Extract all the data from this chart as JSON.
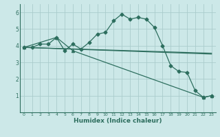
{
  "title": "",
  "xlabel": "Humidex (Indice chaleur)",
  "bg_color": "#cce8e8",
  "line_color": "#2d6e5e",
  "grid_color": "#aacccc",
  "series1_x": [
    0,
    1,
    2,
    3,
    4,
    5,
    6,
    7,
    8,
    9,
    10,
    11,
    12,
    13,
    14,
    15,
    16,
    17,
    18,
    19,
    20,
    21,
    22,
    23
  ],
  "series1_y": [
    3.9,
    3.9,
    4.1,
    4.1,
    4.5,
    3.7,
    4.1,
    3.8,
    4.2,
    4.7,
    4.8,
    5.5,
    5.9,
    5.6,
    5.7,
    5.6,
    5.1,
    4.0,
    2.8,
    2.45,
    2.4,
    1.3,
    0.9,
    1.0
  ],
  "series2_x": [
    0,
    23
  ],
  "series2_y": [
    3.9,
    3.5
  ],
  "series3_x": [
    0,
    4,
    6,
    22,
    23
  ],
  "series3_y": [
    3.9,
    4.5,
    3.7,
    0.9,
    1.0
  ],
  "series4_x": [
    0,
    23
  ],
  "series4_y": [
    3.9,
    3.55
  ],
  "ylim": [
    0,
    6.5
  ],
  "xlim": [
    -0.5,
    23.5
  ],
  "yticks": [
    1,
    2,
    3,
    4,
    5,
    6
  ],
  "xticks": [
    0,
    1,
    2,
    3,
    4,
    5,
    6,
    7,
    8,
    9,
    10,
    11,
    12,
    13,
    14,
    15,
    16,
    17,
    18,
    19,
    20,
    21,
    22,
    23
  ]
}
